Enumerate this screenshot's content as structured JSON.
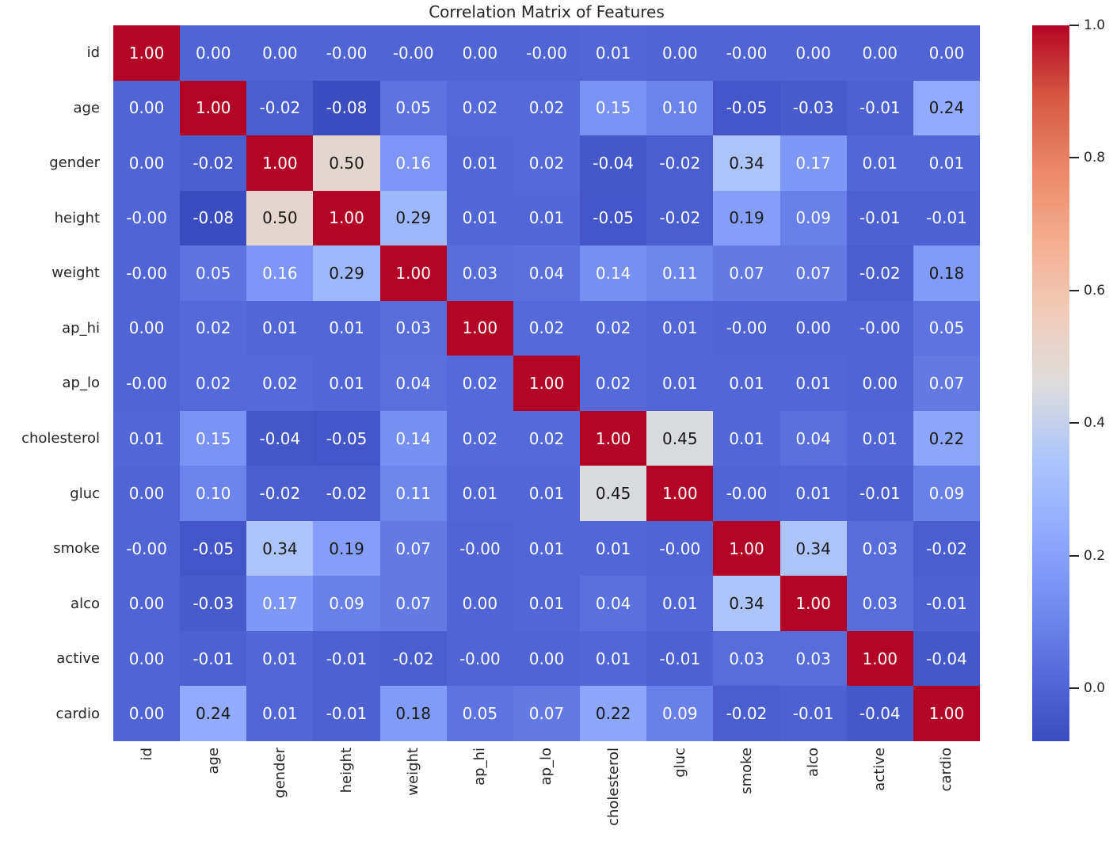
{
  "title": "Correlation Matrix of Features",
  "chart_data": {
    "type": "heatmap",
    "title": "Correlation Matrix of Features",
    "x_labels": [
      "id",
      "age",
      "gender",
      "height",
      "weight",
      "ap_hi",
      "ap_lo",
      "cholesterol",
      "gluc",
      "smoke",
      "alco",
      "active",
      "cardio"
    ],
    "y_labels": [
      "id",
      "age",
      "gender",
      "height",
      "weight",
      "ap_hi",
      "ap_lo",
      "cholesterol",
      "gluc",
      "smoke",
      "alco",
      "active",
      "cardio"
    ],
    "matrix": [
      [
        "1.00",
        "0.00",
        "0.00",
        "-0.00",
        "-0.00",
        "0.00",
        "-0.00",
        "0.01",
        "0.00",
        "-0.00",
        "0.00",
        "0.00",
        "0.00"
      ],
      [
        "0.00",
        "1.00",
        "-0.02",
        "-0.08",
        "0.05",
        "0.02",
        "0.02",
        "0.15",
        "0.10",
        "-0.05",
        "-0.03",
        "-0.01",
        "0.24"
      ],
      [
        "0.00",
        "-0.02",
        "1.00",
        "0.50",
        "0.16",
        "0.01",
        "0.02",
        "-0.04",
        "-0.02",
        "0.34",
        "0.17",
        "0.01",
        "0.01"
      ],
      [
        "-0.00",
        "-0.08",
        "0.50",
        "1.00",
        "0.29",
        "0.01",
        "0.01",
        "-0.05",
        "-0.02",
        "0.19",
        "0.09",
        "-0.01",
        "-0.01"
      ],
      [
        "-0.00",
        "0.05",
        "0.16",
        "0.29",
        "1.00",
        "0.03",
        "0.04",
        "0.14",
        "0.11",
        "0.07",
        "0.07",
        "-0.02",
        "0.18"
      ],
      [
        "0.00",
        "0.02",
        "0.01",
        "0.01",
        "0.03",
        "1.00",
        "0.02",
        "0.02",
        "0.01",
        "-0.00",
        "0.00",
        "-0.00",
        "0.05"
      ],
      [
        "-0.00",
        "0.02",
        "0.02",
        "0.01",
        "0.04",
        "0.02",
        "1.00",
        "0.02",
        "0.01",
        "0.01",
        "0.01",
        "0.00",
        "0.07"
      ],
      [
        "0.01",
        "0.15",
        "-0.04",
        "-0.05",
        "0.14",
        "0.02",
        "0.02",
        "1.00",
        "0.45",
        "0.01",
        "0.04",
        "0.01",
        "0.22"
      ],
      [
        "0.00",
        "0.10",
        "-0.02",
        "-0.02",
        "0.11",
        "0.01",
        "0.01",
        "0.45",
        "1.00",
        "-0.00",
        "0.01",
        "-0.01",
        "0.09"
      ],
      [
        "-0.00",
        "-0.05",
        "0.34",
        "0.19",
        "0.07",
        "-0.00",
        "0.01",
        "0.01",
        "-0.00",
        "1.00",
        "0.34",
        "0.03",
        "-0.02"
      ],
      [
        "0.00",
        "-0.03",
        "0.17",
        "0.09",
        "0.07",
        "0.00",
        "0.01",
        "0.04",
        "0.01",
        "0.34",
        "1.00",
        "0.03",
        "-0.01"
      ],
      [
        "0.00",
        "-0.01",
        "0.01",
        "-0.01",
        "-0.02",
        "-0.00",
        "0.00",
        "0.01",
        "-0.01",
        "0.03",
        "0.03",
        "1.00",
        "-0.04"
      ],
      [
        "0.00",
        "0.24",
        "0.01",
        "-0.01",
        "0.18",
        "0.05",
        "0.07",
        "0.22",
        "0.09",
        "-0.02",
        "-0.01",
        "-0.04",
        "1.00"
      ]
    ],
    "vmin": -0.08,
    "vmax": 1.0,
    "colormap": "coolwarm",
    "legend_position": "right-colorbar",
    "grid": false,
    "colorbar_ticks": [
      {
        "label": "1.0",
        "value": 1.0
      },
      {
        "label": "0.8",
        "value": 0.8
      },
      {
        "label": "0.6",
        "value": 0.6
      },
      {
        "label": "0.4",
        "value": 0.4
      },
      {
        "label": "0.2",
        "value": 0.2
      },
      {
        "label": "0.0",
        "value": 0.0
      }
    ],
    "annotation_dark_text_min": 0.18
  },
  "colors": {
    "background": "#ffffff",
    "annotation_light": "#ffffff",
    "annotation_dark": "#1a1a1a",
    "axis_text": "#262626",
    "tick_mark": "#262626",
    "diagonal_red": "#b40426",
    "low_blue": "#3b4cc0",
    "coolwarm_stops": [
      {
        "t": 0.0,
        "rgb": [
          59,
          76,
          192
        ]
      },
      {
        "t": 0.1,
        "rgb": [
          87,
          108,
          220
        ]
      },
      {
        "t": 0.2,
        "rgb": [
          117,
          143,
          244
        ]
      },
      {
        "t": 0.3,
        "rgb": [
          147,
          172,
          254
        ]
      },
      {
        "t": 0.4,
        "rgb": [
          176,
          199,
          251
        ]
      },
      {
        "t": 0.5,
        "rgb": [
          221,
          220,
          219
        ]
      },
      {
        "t": 0.6,
        "rgb": [
          241,
          203,
          185
        ]
      },
      {
        "t": 0.7,
        "rgb": [
          245,
          173,
          143
        ]
      },
      {
        "t": 0.8,
        "rgb": [
          235,
          135,
          102
        ]
      },
      {
        "t": 0.9,
        "rgb": [
          214,
          88,
          66
        ]
      },
      {
        "t": 1.0,
        "rgb": [
          180,
          4,
          38
        ]
      }
    ]
  }
}
